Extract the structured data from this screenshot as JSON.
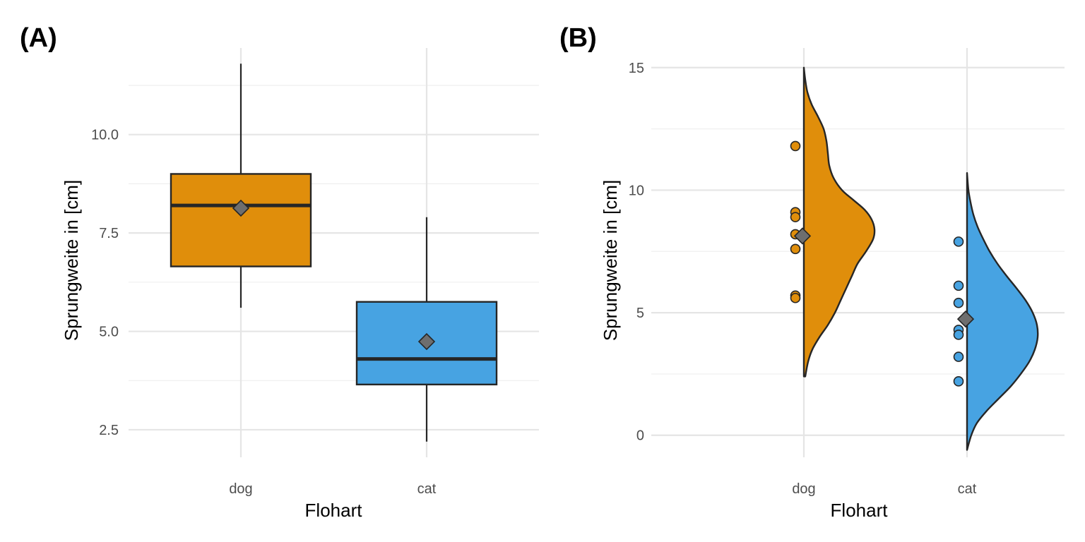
{
  "colors": {
    "dog": "#E08E0B",
    "cat": "#47A3E2",
    "mean_marker": "#6E6E6E",
    "outline": "#262626",
    "grid": "#E5E5E5"
  },
  "chart_data": [
    {
      "panel_label": "(A)",
      "type": "boxplot",
      "xlabel": "Flohart",
      "ylabel": "Sprungweite in [cm]",
      "categories": [
        "dog",
        "cat"
      ],
      "ylim": [
        1.8,
        12.2
      ],
      "y_ticks": [
        2.5,
        5.0,
        7.5,
        10.0
      ],
      "y_tick_labels": [
        "2.5",
        "5.0",
        "7.5",
        "10.0"
      ],
      "grid": true,
      "boxes": [
        {
          "category": "dog",
          "min": 5.6,
          "q1": 6.65,
          "median": 8.2,
          "q3": 9.0,
          "max": 11.8,
          "mean": 8.13
        },
        {
          "category": "cat",
          "min": 2.2,
          "q1": 3.65,
          "median": 4.3,
          "q3": 5.75,
          "max": 7.9,
          "mean": 4.74
        }
      ]
    },
    {
      "panel_label": "(B)",
      "type": "half-violin-with-points",
      "xlabel": "Flohart",
      "ylabel": "Sprungweite in [cm]",
      "categories": [
        "dog",
        "cat"
      ],
      "ylim": [
        -0.9,
        15.8
      ],
      "y_ticks": [
        0,
        5,
        10,
        15
      ],
      "y_tick_labels": [
        "0",
        "5",
        "10",
        "15"
      ],
      "grid": true,
      "groups": [
        {
          "category": "dog",
          "points": [
            11.8,
            9.1,
            8.9,
            8.2,
            7.6,
            5.7,
            5.6
          ],
          "mean": 8.13,
          "density_range": [
            2.4,
            15.0
          ],
          "density_curve": [
            [
              2.4,
              0.02
            ],
            [
              3.0,
              0.06
            ],
            [
              3.5,
              0.12
            ],
            [
              4.0,
              0.22
            ],
            [
              4.5,
              0.34
            ],
            [
              5.0,
              0.44
            ],
            [
              5.5,
              0.52
            ],
            [
              6.0,
              0.6
            ],
            [
              6.5,
              0.68
            ],
            [
              7.0,
              0.76
            ],
            [
              7.5,
              0.88
            ],
            [
              8.0,
              0.98
            ],
            [
              8.4,
              1.0
            ],
            [
              8.8,
              0.96
            ],
            [
              9.2,
              0.86
            ],
            [
              9.6,
              0.7
            ],
            [
              10.0,
              0.54
            ],
            [
              10.5,
              0.42
            ],
            [
              11.0,
              0.36
            ],
            [
              11.5,
              0.34
            ],
            [
              12.0,
              0.32
            ],
            [
              12.5,
              0.28
            ],
            [
              13.0,
              0.2
            ],
            [
              13.5,
              0.11
            ],
            [
              14.0,
              0.05
            ],
            [
              14.5,
              0.02
            ],
            [
              15.0,
              0.0
            ]
          ]
        },
        {
          "category": "cat",
          "points": [
            7.9,
            6.1,
            5.4,
            4.3,
            4.1,
            3.2,
            2.2
          ],
          "mean": 4.74,
          "density_range": [
            -0.6,
            10.7
          ],
          "density_curve": [
            [
              -0.6,
              0.0
            ],
            [
              0.0,
              0.06
            ],
            [
              0.5,
              0.14
            ],
            [
              1.0,
              0.28
            ],
            [
              1.5,
              0.45
            ],
            [
              2.0,
              0.62
            ],
            [
              2.5,
              0.76
            ],
            [
              3.0,
              0.88
            ],
            [
              3.5,
              0.96
            ],
            [
              4.0,
              1.0
            ],
            [
              4.5,
              0.99
            ],
            [
              5.0,
              0.93
            ],
            [
              5.5,
              0.83
            ],
            [
              6.0,
              0.7
            ],
            [
              6.5,
              0.56
            ],
            [
              7.0,
              0.43
            ],
            [
              7.5,
              0.32
            ],
            [
              8.0,
              0.23
            ],
            [
              8.5,
              0.15
            ],
            [
              9.0,
              0.09
            ],
            [
              9.5,
              0.05
            ],
            [
              10.0,
              0.02
            ],
            [
              10.7,
              0.0
            ]
          ]
        }
      ]
    }
  ]
}
